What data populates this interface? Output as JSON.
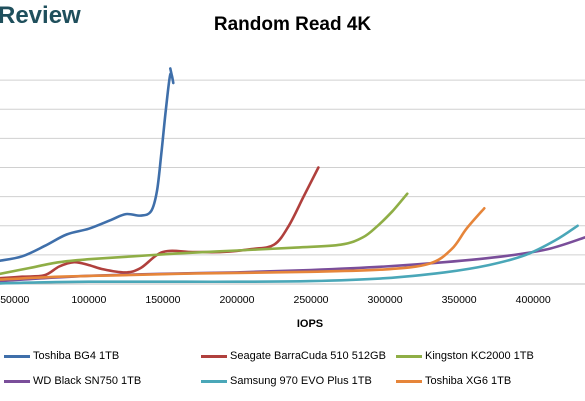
{
  "branding": {
    "logo_text": "Review"
  },
  "chart_data": {
    "type": "line",
    "title": "Random Read 4K",
    "xlabel": "IOPS",
    "ylabel": "",
    "xlim": [
      40000,
      435000
    ],
    "ylim": [
      0,
      8
    ],
    "x_ticks": [
      50000,
      100000,
      150000,
      200000,
      250000,
      300000,
      350000,
      400000
    ],
    "x_tick_labels": [
      "50000",
      "100000",
      "150000",
      "200000",
      "250000",
      "300000",
      "350000",
      "400000"
    ],
    "y_gridlines": [
      1,
      2,
      3,
      4,
      5,
      6,
      7
    ],
    "grid": true,
    "legend_position": "bottom",
    "series": [
      {
        "name": "Toshiba BG4 1TB",
        "color": "#3f6faa",
        "points": [
          [
            40000,
            0.8
          ],
          [
            55000,
            0.95
          ],
          [
            70000,
            1.3
          ],
          [
            85000,
            1.7
          ],
          [
            100000,
            1.9
          ],
          [
            115000,
            2.2
          ],
          [
            125000,
            2.4
          ],
          [
            135000,
            2.35
          ],
          [
            142000,
            2.5
          ],
          [
            146000,
            3.2
          ],
          [
            149000,
            4.5
          ],
          [
            152000,
            6.0
          ],
          [
            155000,
            7.2
          ],
          [
            157000,
            6.9
          ],
          [
            155000,
            7.4
          ]
        ]
      },
      {
        "name": "Seagate BarraCuda 510 512GB",
        "color": "#b0403d",
        "points": [
          [
            40000,
            0.2
          ],
          [
            55000,
            0.25
          ],
          [
            70000,
            0.3
          ],
          [
            80000,
            0.6
          ],
          [
            90000,
            0.75
          ],
          [
            100000,
            0.65
          ],
          [
            110000,
            0.5
          ],
          [
            125000,
            0.4
          ],
          [
            135000,
            0.55
          ],
          [
            150000,
            1.1
          ],
          [
            170000,
            1.1
          ],
          [
            190000,
            1.1
          ],
          [
            210000,
            1.2
          ],
          [
            225000,
            1.35
          ],
          [
            235000,
            2.0
          ],
          [
            245000,
            3.0
          ],
          [
            255000,
            4.0
          ]
        ]
      },
      {
        "name": "Kingston KC2000 1TB",
        "color": "#8fae46",
        "points": [
          [
            40000,
            0.35
          ],
          [
            60000,
            0.55
          ],
          [
            80000,
            0.75
          ],
          [
            100000,
            0.85
          ],
          [
            130000,
            0.95
          ],
          [
            160000,
            1.05
          ],
          [
            200000,
            1.15
          ],
          [
            240000,
            1.25
          ],
          [
            270000,
            1.35
          ],
          [
            285000,
            1.6
          ],
          [
            295000,
            2.0
          ],
          [
            305000,
            2.5
          ],
          [
            315000,
            3.1
          ]
        ]
      },
      {
        "name": "WD Black SN750 1TB",
        "color": "#7a4e9a",
        "points": [
          [
            40000,
            0.1
          ],
          [
            70000,
            0.2
          ],
          [
            100000,
            0.28
          ],
          [
            150000,
            0.35
          ],
          [
            200000,
            0.4
          ],
          [
            250000,
            0.48
          ],
          [
            300000,
            0.6
          ],
          [
            340000,
            0.75
          ],
          [
            380000,
            0.95
          ],
          [
            410000,
            1.2
          ],
          [
            435000,
            1.6
          ]
        ]
      },
      {
        "name": "Samsung 970 EVO Plus 1TB",
        "color": "#4aa7b8",
        "points": [
          [
            40000,
            0.02
          ],
          [
            70000,
            0.06
          ],
          [
            100000,
            0.08
          ],
          [
            150000,
            0.08
          ],
          [
            200000,
            0.08
          ],
          [
            250000,
            0.1
          ],
          [
            300000,
            0.2
          ],
          [
            340000,
            0.4
          ],
          [
            370000,
            0.65
          ],
          [
            395000,
            1.0
          ],
          [
            415000,
            1.5
          ],
          [
            430000,
            2.0
          ]
        ]
      },
      {
        "name": "Toshiba XG6 1TB",
        "color": "#e6853a",
        "points": [
          [
            40000,
            0.15
          ],
          [
            80000,
            0.25
          ],
          [
            120000,
            0.3
          ],
          [
            160000,
            0.35
          ],
          [
            200000,
            0.38
          ],
          [
            250000,
            0.42
          ],
          [
            300000,
            0.5
          ],
          [
            330000,
            0.7
          ],
          [
            345000,
            1.2
          ],
          [
            355000,
            1.9
          ],
          [
            367000,
            2.6
          ]
        ]
      }
    ]
  }
}
